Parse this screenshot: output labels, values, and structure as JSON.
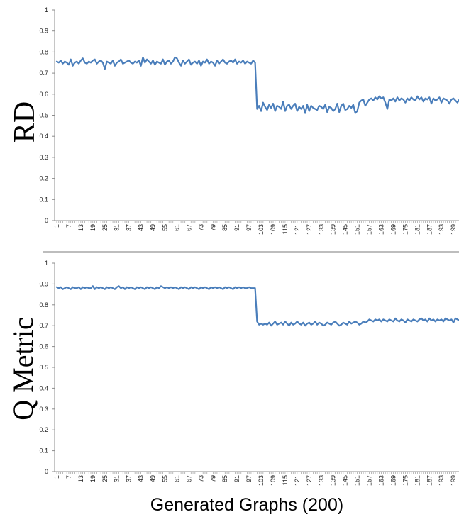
{
  "xlabel": "Generated Graphs (200)",
  "colors": {
    "series": "#4a7ebb",
    "axis": "#8c8c8c",
    "divider": "#bdbdbd"
  },
  "chart_data": [
    {
      "type": "line",
      "ylabel": "RD",
      "ylim": [
        0,
        1
      ],
      "yticks": [
        "0",
        "0.1",
        "0.2",
        "0.3",
        "0.4",
        "0.5",
        "0.6",
        "0.7",
        "0.8",
        "0.9",
        "1"
      ],
      "xlim": [
        1,
        200
      ],
      "xticks": [
        "1",
        "7",
        "13",
        "19",
        "25",
        "31",
        "37",
        "43",
        "49",
        "55",
        "61",
        "67",
        "73",
        "79",
        "85",
        "91",
        "97",
        "103",
        "109",
        "115",
        "121",
        "127",
        "133",
        "139",
        "145",
        "151",
        "157",
        "163",
        "169",
        "175",
        "181",
        "187",
        "193",
        "199"
      ],
      "grid": false,
      "series": [
        {
          "values": [
            0.755,
            0.75,
            0.76,
            0.745,
            0.755,
            0.75,
            0.74,
            0.765,
            0.735,
            0.75,
            0.755,
            0.745,
            0.76,
            0.77,
            0.75,
            0.745,
            0.755,
            0.75,
            0.76,
            0.765,
            0.745,
            0.755,
            0.76,
            0.75,
            0.72,
            0.755,
            0.75,
            0.745,
            0.76,
            0.735,
            0.75,
            0.755,
            0.765,
            0.745,
            0.75,
            0.755,
            0.76,
            0.75,
            0.745,
            0.755,
            0.75,
            0.76,
            0.735,
            0.775,
            0.75,
            0.765,
            0.755,
            0.745,
            0.76,
            0.74,
            0.755,
            0.75,
            0.745,
            0.765,
            0.74,
            0.755,
            0.76,
            0.745,
            0.755,
            0.775,
            0.77,
            0.75,
            0.735,
            0.76,
            0.745,
            0.755,
            0.765,
            0.74,
            0.75,
            0.755,
            0.745,
            0.76,
            0.735,
            0.755,
            0.75,
            0.765,
            0.745,
            0.755,
            0.75,
            0.735,
            0.76,
            0.745,
            0.755,
            0.765,
            0.75,
            0.745,
            0.755,
            0.76,
            0.75,
            0.765,
            0.745,
            0.755,
            0.75,
            0.76,
            0.745,
            0.755,
            0.75,
            0.745,
            0.76,
            0.75,
            0.53,
            0.545,
            0.52,
            0.56,
            0.54,
            0.525,
            0.55,
            0.535,
            0.555,
            0.52,
            0.545,
            0.54,
            0.53,
            0.565,
            0.52,
            0.545,
            0.55,
            0.53,
            0.545,
            0.555,
            0.52,
            0.54,
            0.53,
            0.545,
            0.51,
            0.55,
            0.52,
            0.545,
            0.535,
            0.53,
            0.525,
            0.545,
            0.54,
            0.53,
            0.55,
            0.515,
            0.54,
            0.535,
            0.52,
            0.53,
            0.555,
            0.515,
            0.545,
            0.555,
            0.525,
            0.53,
            0.545,
            0.535,
            0.55,
            0.51,
            0.52,
            0.56,
            0.57,
            0.575,
            0.545,
            0.56,
            0.575,
            0.58,
            0.57,
            0.585,
            0.575,
            0.59,
            0.58,
            0.585,
            0.56,
            0.53,
            0.575,
            0.57,
            0.58,
            0.565,
            0.585,
            0.57,
            0.58,
            0.575,
            0.56,
            0.58,
            0.57,
            0.585,
            0.575,
            0.57,
            0.59,
            0.575,
            0.585,
            0.565,
            0.58,
            0.575,
            0.585,
            0.555,
            0.58,
            0.57,
            0.575,
            0.585,
            0.56,
            0.58,
            0.575,
            0.57,
            0.555,
            0.575,
            0.58,
            0.57,
            0.56,
            0.575,
            0.55,
            0.58,
            0.54,
            0.575
          ]
        }
      ]
    },
    {
      "type": "line",
      "ylabel": "Q Metric",
      "ylim": [
        0,
        1
      ],
      "yticks": [
        "0",
        "0.1",
        "0.2",
        "0.3",
        "0.4",
        "0.5",
        "0.6",
        "0.7",
        "0.8",
        "0.9",
        "1"
      ],
      "xlim": [
        1,
        200
      ],
      "xticks": [
        "1",
        "7",
        "13",
        "19",
        "25",
        "31",
        "37",
        "43",
        "49",
        "55",
        "61",
        "67",
        "73",
        "79",
        "85",
        "91",
        "97",
        "103",
        "109",
        "115",
        "121",
        "127",
        "133",
        "139",
        "145",
        "151",
        "157",
        "163",
        "169",
        "175",
        "181",
        "187",
        "193",
        "199"
      ],
      "xlabel": "Generated Graphs (200)",
      "grid": false,
      "series": [
        {
          "values": [
            0.885,
            0.88,
            0.885,
            0.875,
            0.88,
            0.885,
            0.88,
            0.875,
            0.885,
            0.88,
            0.88,
            0.885,
            0.875,
            0.885,
            0.88,
            0.885,
            0.88,
            0.88,
            0.89,
            0.875,
            0.885,
            0.88,
            0.885,
            0.88,
            0.875,
            0.885,
            0.88,
            0.885,
            0.88,
            0.875,
            0.885,
            0.89,
            0.88,
            0.885,
            0.875,
            0.885,
            0.88,
            0.885,
            0.88,
            0.875,
            0.885,
            0.88,
            0.885,
            0.88,
            0.875,
            0.885,
            0.88,
            0.885,
            0.88,
            0.875,
            0.885,
            0.88,
            0.89,
            0.885,
            0.88,
            0.885,
            0.88,
            0.885,
            0.88,
            0.885,
            0.88,
            0.875,
            0.885,
            0.88,
            0.885,
            0.88,
            0.875,
            0.885,
            0.88,
            0.885,
            0.88,
            0.875,
            0.885,
            0.88,
            0.885,
            0.88,
            0.875,
            0.885,
            0.88,
            0.885,
            0.88,
            0.885,
            0.88,
            0.875,
            0.885,
            0.88,
            0.885,
            0.88,
            0.875,
            0.885,
            0.88,
            0.885,
            0.88,
            0.885,
            0.88,
            0.88,
            0.885,
            0.88,
            0.88,
            0.88,
            0.72,
            0.705,
            0.71,
            0.705,
            0.71,
            0.705,
            0.715,
            0.7,
            0.71,
            0.72,
            0.705,
            0.71,
            0.715,
            0.705,
            0.72,
            0.71,
            0.7,
            0.715,
            0.705,
            0.71,
            0.72,
            0.71,
            0.705,
            0.715,
            0.7,
            0.71,
            0.715,
            0.705,
            0.71,
            0.72,
            0.705,
            0.715,
            0.71,
            0.7,
            0.705,
            0.715,
            0.71,
            0.705,
            0.715,
            0.72,
            0.71,
            0.7,
            0.705,
            0.715,
            0.71,
            0.705,
            0.72,
            0.71,
            0.715,
            0.72,
            0.715,
            0.705,
            0.71,
            0.72,
            0.715,
            0.72,
            0.73,
            0.725,
            0.72,
            0.73,
            0.725,
            0.73,
            0.72,
            0.73,
            0.725,
            0.72,
            0.73,
            0.725,
            0.72,
            0.735,
            0.725,
            0.72,
            0.73,
            0.725,
            0.715,
            0.73,
            0.725,
            0.72,
            0.73,
            0.725,
            0.72,
            0.73,
            0.735,
            0.725,
            0.73,
            0.72,
            0.735,
            0.725,
            0.73,
            0.72,
            0.73,
            0.725,
            0.73,
            0.72,
            0.735,
            0.73,
            0.725,
            0.73,
            0.715,
            0.735,
            0.73,
            0.725,
            0.74,
            0.73,
            0.735,
            0.725,
            0.72,
            0.73,
            0.735,
            0.72
          ]
        }
      ]
    }
  ]
}
